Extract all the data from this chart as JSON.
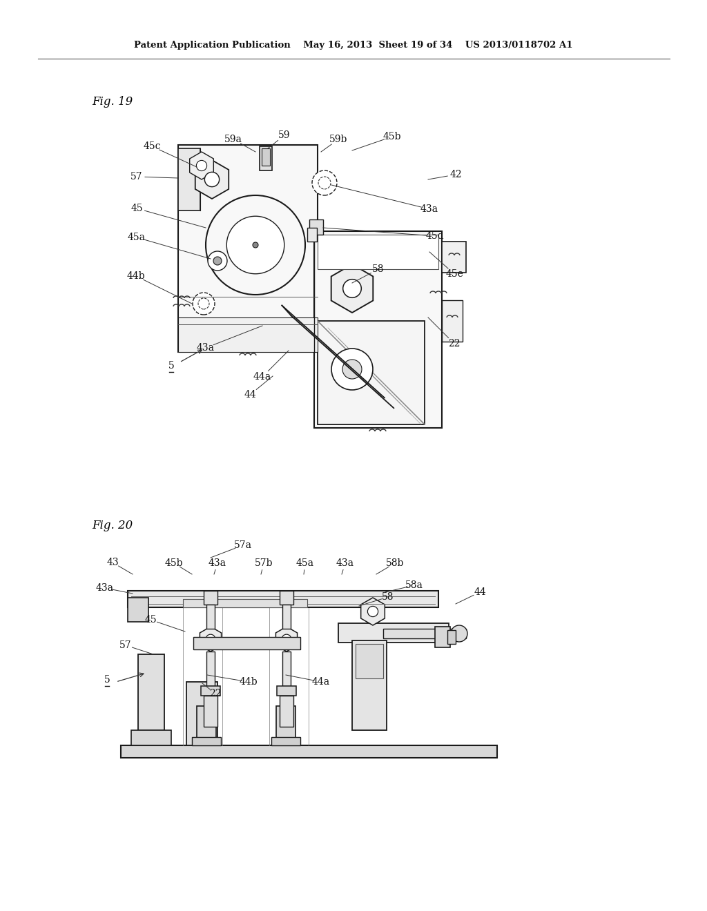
{
  "background": "#ffffff",
  "header": "Patent Application Publication    May 16, 2013  Sheet 19 of 34    US 2013/0118702 A1",
  "fig19_label": "Fig. 19",
  "fig20_label": "Fig. 20",
  "line_color": "#1a1a1a",
  "label_color": "#111111"
}
